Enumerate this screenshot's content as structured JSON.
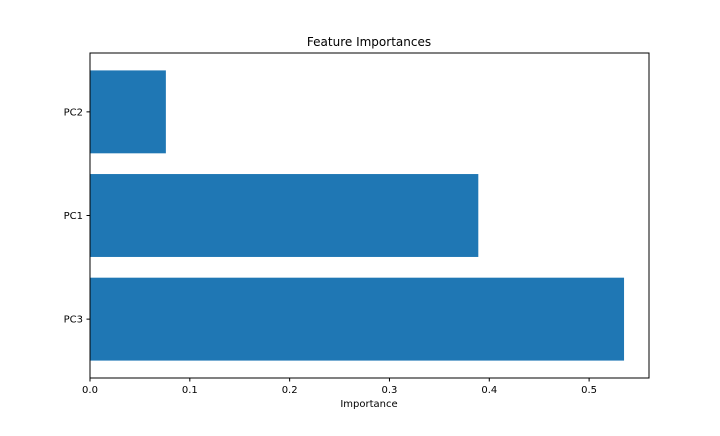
{
  "chart_data": {
    "type": "bar",
    "orientation": "horizontal",
    "title": "Feature Importances",
    "xlabel": "Importance",
    "ylabel": "",
    "categories": [
      "PC3",
      "PC1",
      "PC2"
    ],
    "values": [
      0.535,
      0.389,
      0.076
    ],
    "xlim": [
      0,
      0.56
    ],
    "xticks": [
      0,
      0.1,
      0.2,
      0.3,
      0.4,
      0.5
    ],
    "xtick_labels": [
      "0.0",
      "0.1",
      "0.2",
      "0.3",
      "0.4",
      "0.5"
    ],
    "bar_color": "#1f77b4",
    "grid": false,
    "legend": "none"
  }
}
